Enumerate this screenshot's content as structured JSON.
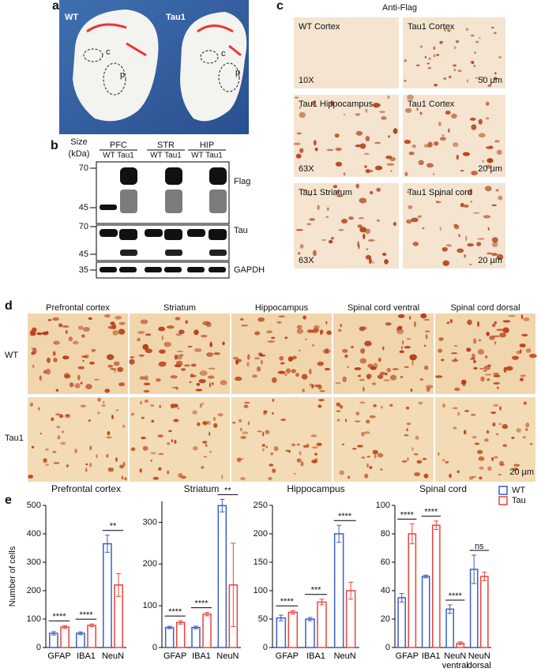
{
  "panel_a": {
    "label": "a",
    "texts": [
      "WT",
      "Tau1",
      "c",
      "p",
      "c",
      "p"
    ]
  },
  "panel_b": {
    "label": "b",
    "size_label": [
      "Size",
      "(kDa)"
    ],
    "regions": [
      "PFC",
      "STR",
      "HIP"
    ],
    "lanes": [
      "WT Tau1",
      "WT Tau1",
      "WT Tau1"
    ],
    "markers": [
      "70",
      "45",
      "70",
      "45",
      "35"
    ],
    "blots": [
      "Flag",
      "Tau",
      "GAPDH"
    ]
  },
  "panel_c": {
    "label": "c",
    "title": "Anti-Flag",
    "images": [
      {
        "label": "WT  Cortex",
        "note": "10X"
      },
      {
        "label": "Tau1 Cortex",
        "note": "50 µm"
      },
      {
        "label": "Tau1 Hippocampus",
        "note": "63X"
      },
      {
        "label": "Tau1 Cortex",
        "note": "20 µm"
      },
      {
        "label": "Tau1 Striatum",
        "note": "63X"
      },
      {
        "label": "Tau1 Spinal cord",
        "note": "20 µm"
      }
    ]
  },
  "panel_d": {
    "label": "d",
    "columns": [
      "Prefrontal cortex",
      "Striatum",
      "Hippocampus",
      "Spinal cord ventral",
      "Spinal cord dorsal"
    ],
    "rows": [
      "WT",
      "Tau1"
    ],
    "scale": "20 µm"
  },
  "panel_e": {
    "label": "e",
    "ylabel": "Number of cells"
  },
  "chart_data": [
    {
      "type": "bar",
      "title": "Prefrontal cortex",
      "categories": [
        "GFAP",
        "IBA1",
        "NeuN"
      ],
      "series": [
        {
          "name": "WT",
          "color": "#3a5fc8",
          "values": [
            50,
            50,
            365
          ],
          "errors": [
            6,
            5,
            30
          ]
        },
        {
          "name": "Tau",
          "color": "#e8453c",
          "values": [
            72,
            78,
            220
          ],
          "errors": [
            5,
            5,
            40
          ]
        }
      ],
      "significance": [
        "****",
        "****",
        "**"
      ],
      "ylim": [
        0,
        500
      ],
      "yticks": [
        0,
        100,
        200,
        300,
        400,
        500
      ]
    },
    {
      "type": "bar",
      "title": "Striatum",
      "categories": [
        "GFAP",
        "IBA1",
        "NeuN"
      ],
      "series": [
        {
          "name": "WT",
          "color": "#3a5fc8",
          "values": [
            48,
            48,
            340
          ],
          "errors": [
            3,
            3,
            15
          ]
        },
        {
          "name": "Tau",
          "color": "#e8453c",
          "values": [
            60,
            80,
            150
          ],
          "errors": [
            4,
            4,
            100
          ]
        }
      ],
      "significance": [
        "****",
        "****",
        "**"
      ],
      "ylim": [
        0,
        350
      ],
      "yticks": [
        0,
        100,
        200,
        300
      ]
    },
    {
      "type": "bar",
      "title": "Hippocampus",
      "categories": [
        "GFAP",
        "IBA1",
        "NeuN"
      ],
      "series": [
        {
          "name": "WT",
          "color": "#3a5fc8",
          "values": [
            52,
            50,
            200
          ],
          "errors": [
            5,
            3,
            15
          ]
        },
        {
          "name": "Tau",
          "color": "#e8453c",
          "values": [
            62,
            80,
            100
          ],
          "errors": [
            3,
            5,
            15
          ]
        }
      ],
      "significance": [
        "****",
        "***",
        "****"
      ],
      "ylim": [
        0,
        250
      ],
      "yticks": [
        0,
        50,
        100,
        150,
        200,
        250
      ]
    },
    {
      "type": "bar",
      "title": "Spinal cord",
      "categories": [
        "GFAP",
        "IBA1",
        "NeuN ventral",
        "NeuN dorsal"
      ],
      "series": [
        {
          "name": "WT",
          "color": "#3a5fc8",
          "values": [
            35,
            50,
            27,
            55
          ],
          "errors": [
            3,
            1,
            3,
            10
          ]
        },
        {
          "name": "Tau",
          "color": "#e8453c",
          "values": [
            80,
            86,
            3,
            50
          ],
          "errors": [
            7,
            3,
            1,
            3
          ]
        }
      ],
      "significance": [
        "****",
        "****",
        "****",
        "ns"
      ],
      "ylim": [
        0,
        100
      ],
      "yticks": [
        0,
        20,
        40,
        60,
        80,
        100
      ],
      "legend": "upper right"
    }
  ]
}
